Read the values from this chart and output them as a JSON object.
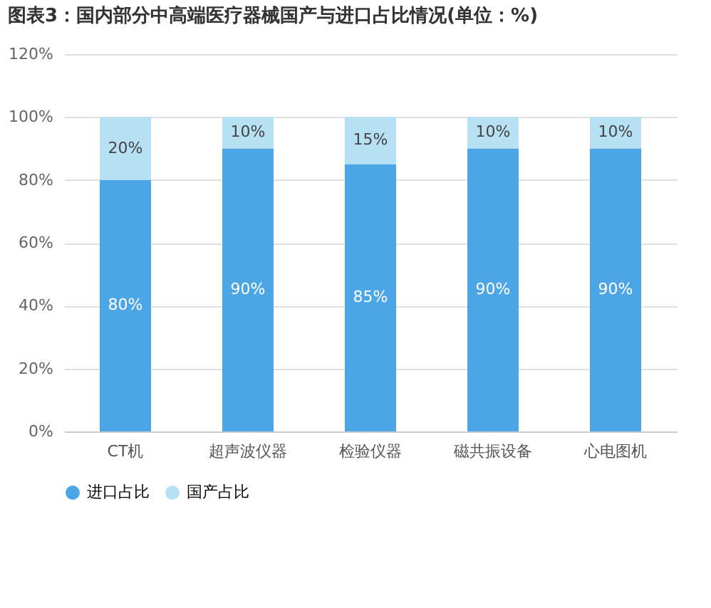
{
  "chart_data": {
    "type": "bar",
    "title": "图表3：国内部分中高端医疗器械国产与进口占比情况(单位：%)",
    "categories": [
      "CT机",
      "超声波仪器",
      "检验仪器",
      "磁共振设备",
      "心电图机"
    ],
    "stacked": true,
    "series": [
      {
        "name": "进口占比",
        "color": "#4ca6e6",
        "values": [
          80,
          90,
          85,
          90,
          90
        ],
        "value_labels": [
          "80%",
          "90%",
          "85%",
          "90%",
          "90%"
        ]
      },
      {
        "name": "国产占比",
        "color": "#b7e0f5",
        "values": [
          20,
          10,
          15,
          10,
          10
        ],
        "value_labels": [
          "20%",
          "10%",
          "15%",
          "10%",
          "10%"
        ]
      }
    ],
    "ylim": [
      0,
      120
    ],
    "yticks": [
      {
        "value": 0,
        "label": "0%"
      },
      {
        "value": 20,
        "label": "20%"
      },
      {
        "value": 40,
        "label": "40%"
      },
      {
        "value": 60,
        "label": "60%"
      },
      {
        "value": 80,
        "label": "80%"
      },
      {
        "value": 100,
        "label": "100%"
      },
      {
        "value": 120,
        "label": "120%"
      }
    ],
    "grid": "y",
    "legend": "bottom"
  }
}
